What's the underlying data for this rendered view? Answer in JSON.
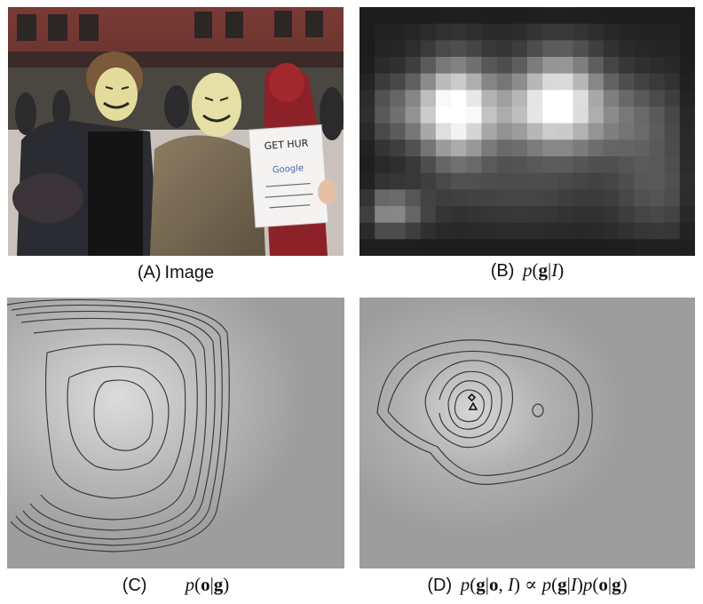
{
  "panels": {
    "a": {
      "letter": "(A)",
      "label": "Image",
      "sign_title": "GET  HUR",
      "sign_brand": "Google"
    },
    "b": {
      "letter": "(B)"
    },
    "c": {
      "letter": "(C)"
    },
    "d": {
      "letter": "(D)"
    }
  },
  "colors": {
    "panel_gray": "#9a9a9a",
    "contour": "#3a3a3a",
    "heat_dark": "#141414"
  },
  "heatmap": {
    "cols": 22,
    "rows": 15,
    "peaks": [
      {
        "cx": 6.3,
        "cy": 6.2,
        "sx": 1.6,
        "sy": 2.1,
        "a": 0.85
      },
      {
        "cx": 13.1,
        "cy": 5.6,
        "sx": 1.9,
        "sy": 2.0,
        "a": 0.8
      },
      {
        "cx": 10.0,
        "cy": 6.5,
        "sx": 2.8,
        "sy": 1.6,
        "a": 0.35
      },
      {
        "cx": 17.5,
        "cy": 6.8,
        "sx": 2.5,
        "sy": 1.8,
        "a": 0.3
      },
      {
        "cx": 3.0,
        "cy": 6.3,
        "sx": 2.2,
        "sy": 1.4,
        "a": 0.28
      },
      {
        "cx": 2.0,
        "cy": 12.3,
        "sx": 1.5,
        "sy": 0.9,
        "a": 0.45
      },
      {
        "cx": 10.5,
        "cy": 11.0,
        "sx": 4.0,
        "sy": 1.5,
        "a": 0.15
      },
      {
        "cx": 19.5,
        "cy": 11.0,
        "sx": 2.0,
        "sy": 2.0,
        "a": 0.2
      }
    ]
  }
}
